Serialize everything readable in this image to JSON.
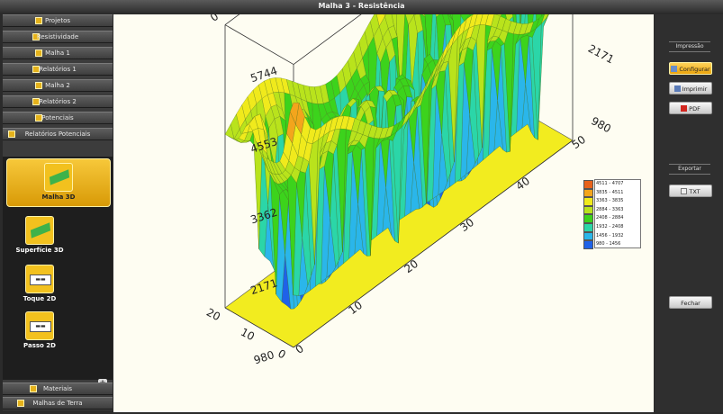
{
  "window": {
    "title": "Malha 3 - Resistência"
  },
  "sidebar": {
    "top_items": [
      {
        "label": "Projetos"
      },
      {
        "label": "Resistividade"
      },
      {
        "label": "Malha 1"
      },
      {
        "label": "Relatórios 1"
      },
      {
        "label": "Malha 2"
      },
      {
        "label": "Relatórios 2"
      },
      {
        "label": "Potenciais"
      },
      {
        "label": "Relatórios Potenciais"
      }
    ],
    "tools": [
      {
        "label": "Malha 3D",
        "active": true
      },
      {
        "label": "Superfície 3D"
      },
      {
        "label": "Toque 2D"
      },
      {
        "label": "Passo 2D"
      }
    ],
    "bottom_items": [
      {
        "label": "Materiais"
      },
      {
        "label": "Malhas de Terra"
      }
    ],
    "expand_symbol": "+"
  },
  "right_panel": {
    "print_group": "Impressão",
    "configure": "Configurar",
    "print": "Imprimir",
    "pdf": "PDF",
    "export_group": "Exportar",
    "txt": "TXT",
    "close": "Fechar"
  },
  "chart_data": {
    "type": "surface3d",
    "z_ticks": [
      "5744",
      "4553",
      "3362",
      "2171",
      "980"
    ],
    "x_ticks": [
      "0",
      "10",
      "20",
      "30",
      "40",
      "50"
    ],
    "y_ticks": [
      "0",
      "10",
      "20"
    ],
    "z_range": [
      980,
      5744
    ],
    "legend": [
      {
        "range": "4511 - 4707",
        "color": "#e8621b"
      },
      {
        "range": "3835 - 4511",
        "color": "#f3a51c"
      },
      {
        "range": "3363 - 3835",
        "color": "#f0ea1c"
      },
      {
        "range": "2884 - 3363",
        "color": "#b9e31c"
      },
      {
        "range": "2408 - 2884",
        "color": "#3cd31c"
      },
      {
        "range": "1932 - 2408",
        "color": "#2bd6a8"
      },
      {
        "range": "1456 - 1932",
        "color": "#2ab6ea"
      },
      {
        "range": "980 - 1456",
        "color": "#1f62e8"
      }
    ],
    "legend_position": "right"
  }
}
